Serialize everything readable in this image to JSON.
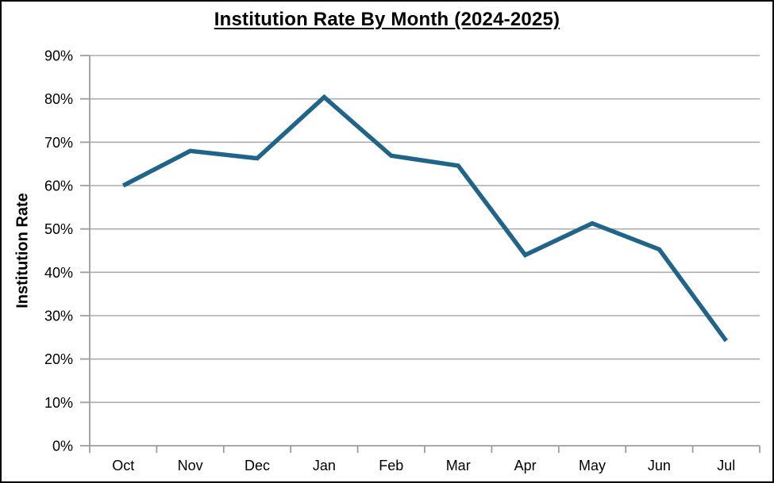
{
  "window": {
    "background": "#FFFFFF",
    "border_color": "#000000"
  },
  "chart": {
    "title": "Institution Rate By Month (2024-2025)",
    "y_axis_title": "Institution Rate"
  },
  "chart_data": {
    "type": "line",
    "title": "Institution Rate By Month (2024-2025)",
    "categories": [
      "Oct",
      "Nov",
      "Dec",
      "Jan",
      "Feb",
      "Mar",
      "Apr",
      "May",
      "Jun",
      "Jul"
    ],
    "values": [
      60,
      68,
      66.3,
      80.4,
      66.9,
      64.6,
      44,
      51.3,
      45.3,
      24.2
    ],
    "series_name": "Institution Rate",
    "xlabel": "",
    "ylabel": "Institution Rate",
    "ylim": [
      0,
      90
    ],
    "ytick_step": 10,
    "y_tick_labels": [
      "0%",
      "10%",
      "20%",
      "30%",
      "40%",
      "50%",
      "60%",
      "70%",
      "80%",
      "90%"
    ],
    "grid": "horizontal",
    "legend": "none",
    "line_color": "#20648A",
    "line_width": 5.5,
    "gridline_color": "#ACACAC",
    "axis_color": "#9D9D9D",
    "text_color": "#000000"
  }
}
